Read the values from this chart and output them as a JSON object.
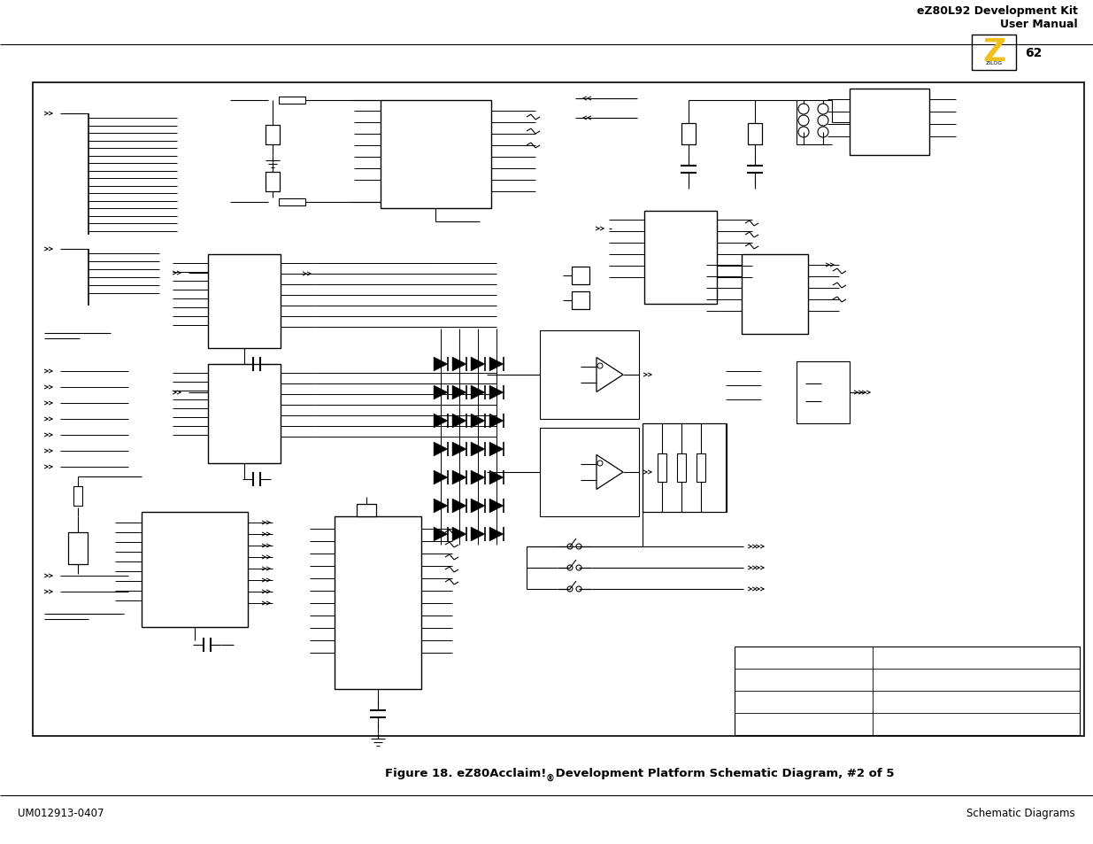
{
  "title_line1": "eZ80L92 Development Kit",
  "title_line2": "User Manual",
  "page_number": "62",
  "caption_part1": "Figure 18. eZ80Acclaim!",
  "caption_reg": "®",
  "caption_part2": " Development Platform Schematic Diagram, #2 of 5",
  "footer_left": "UM012913-0407",
  "footer_right": "Schematic Diagrams",
  "bg_color": "#ffffff",
  "zilog_color": "#f0c020"
}
